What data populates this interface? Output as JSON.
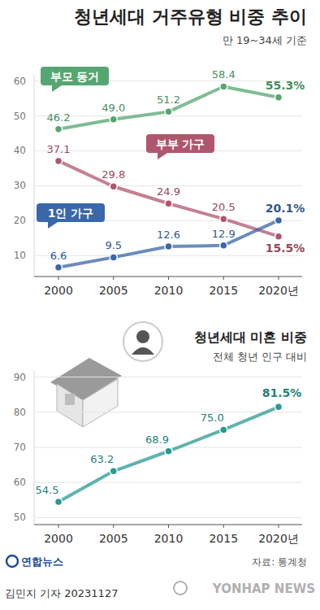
{
  "chart_data": [
    {
      "type": "line",
      "title": "청년세대 거주유형 비중 추이",
      "subtitle": "만 19~34세 기준",
      "categories": [
        "2000",
        "2005",
        "2010",
        "2015",
        "2020년"
      ],
      "series": [
        {
          "name": "부모 동거",
          "color": "#56a672",
          "values": [
            46.2,
            49.0,
            51.2,
            58.4,
            55.3
          ],
          "value_labels": [
            "46.2",
            "49.0",
            "51.2",
            "58.4",
            "55.3%"
          ]
        },
        {
          "name": "부부 가구",
          "color": "#b0566c",
          "values": [
            37.1,
            29.8,
            24.9,
            20.5,
            15.5
          ],
          "value_labels": [
            "37.1",
            "29.8",
            "24.9",
            "20.5",
            "15.5%"
          ]
        },
        {
          "name": "1인 가구",
          "color": "#3a67a8",
          "values": [
            6.6,
            9.5,
            12.6,
            12.9,
            20.1
          ],
          "value_labels": [
            "6.6",
            "9.5",
            "12.6",
            "12.9",
            "20.1%"
          ]
        }
      ],
      "ylim": [
        4,
        62
      ],
      "yticks": [
        10,
        20,
        30,
        40,
        50,
        60
      ],
      "grid": true,
      "data_labels": true,
      "marker": "circle"
    },
    {
      "type": "line",
      "title": "청년세대 미혼 비중",
      "subtitle": "전체 청년 인구 대비",
      "categories": [
        "2000",
        "2005",
        "2010",
        "2015",
        "2020년"
      ],
      "values": [
        54.5,
        63.2,
        68.9,
        75.0,
        81.5
      ],
      "value_labels": [
        "54.5",
        "63.2",
        "68.9",
        "75.0",
        "81.5%"
      ],
      "color": "#2a9993",
      "ylim": [
        48,
        92
      ],
      "yticks": [
        50,
        60,
        70,
        80,
        90
      ],
      "grid": true,
      "data_labels": true,
      "marker": "circle"
    }
  ],
  "footer": {
    "logo": "연합뉴스",
    "source": "자료: 통계청",
    "credit": "김민지 기자 20231127",
    "watermark": "YONHAP NEWS"
  }
}
